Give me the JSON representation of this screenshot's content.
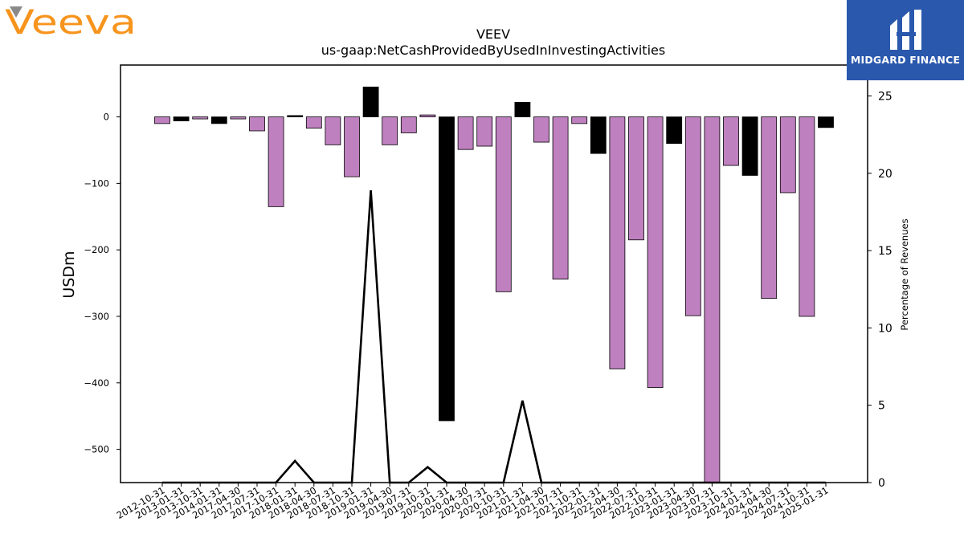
{
  "brand": {
    "company_logo": "Veeva",
    "company_logo_color": "#f7941d",
    "company_logo_accent": "#8a8a8a",
    "publisher_logo": "MIDGARD FINANCE",
    "publisher_bg": "#2a58ad"
  },
  "chart_data": {
    "type": "bar",
    "title": "VEEV",
    "subtitle": "us-gaap:NetCashProvidedByUsedInInvestingActivities",
    "ylabel": "USDm",
    "y2label": "Percentage of Revenues",
    "ylim": [
      -550,
      78
    ],
    "y2lim": [
      0,
      27
    ],
    "yticks": [
      0,
      -100,
      -200,
      -300,
      -400,
      -500
    ],
    "y2ticks": [
      0,
      5,
      10,
      15,
      20,
      25
    ],
    "grid": false,
    "colors": {
      "quarterly": "#bf80bf",
      "annual": "#000000",
      "line": "#000000"
    },
    "categories": [
      "2012-10-31",
      "2013-01-31",
      "2013-10-31",
      "2014-01-31",
      "2017-04-30",
      "2017-07-31",
      "2017-10-31",
      "2018-01-31",
      "2018-04-30",
      "2018-07-31",
      "2018-10-31",
      "2019-01-31",
      "2019-04-30",
      "2019-07-31",
      "2019-10-31",
      "2020-01-31",
      "2020-04-30",
      "2020-07-31",
      "2020-10-31",
      "2021-01-31",
      "2021-04-30",
      "2021-07-31",
      "2021-10-31",
      "2022-01-31",
      "2022-04-30",
      "2022-07-31",
      "2022-10-31",
      "2023-01-31",
      "2023-04-30",
      "2023-07-31",
      "2023-10-31",
      "2024-01-31",
      "2024-04-30",
      "2024-07-31",
      "2024-10-31",
      "2025-01-31"
    ],
    "values": [
      -10,
      -6,
      -3,
      -10,
      -3,
      -21,
      -135,
      2,
      -17,
      -42,
      -90,
      45,
      -42,
      -24,
      3,
      -457,
      -49,
      -44,
      -263,
      22,
      -38,
      -244,
      -10,
      -55,
      -379,
      -185,
      -407,
      -40,
      -299,
      -560,
      -73,
      -88,
      -273,
      -114,
      -300,
      -16
    ],
    "bar_color_keys": [
      "quarterly",
      "annual",
      "quarterly",
      "annual",
      "quarterly",
      "quarterly",
      "quarterly",
      "annual",
      "quarterly",
      "quarterly",
      "quarterly",
      "annual",
      "quarterly",
      "quarterly",
      "quarterly",
      "annual",
      "quarterly",
      "quarterly",
      "quarterly",
      "annual",
      "quarterly",
      "quarterly",
      "quarterly",
      "annual",
      "quarterly",
      "quarterly",
      "quarterly",
      "annual",
      "quarterly",
      "quarterly",
      "quarterly",
      "annual",
      "quarterly",
      "quarterly",
      "quarterly",
      "annual"
    ],
    "line_values": [
      0,
      0,
      0,
      0,
      0,
      0,
      0,
      1.4,
      0,
      0,
      0,
      18.9,
      0,
      0,
      1.0,
      0,
      0,
      0,
      0,
      5.3,
      0,
      0,
      0,
      0,
      0,
      0,
      0,
      0,
      0,
      0,
      0,
      0,
      0,
      0,
      0,
      0
    ]
  }
}
